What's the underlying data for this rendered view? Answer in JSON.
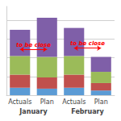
{
  "chart_data": {
    "type": "bar",
    "stacked": true,
    "categories": [
      "Actuals",
      "Plan",
      "Actuals",
      "Plan"
    ],
    "groups": [
      "January",
      "February"
    ],
    "series": [
      {
        "color": "#5b9bd5",
        "values": [
          8,
          7,
          8,
          5
        ]
      },
      {
        "color": "#c0504d",
        "values": [
          14,
          12,
          14,
          8
        ]
      },
      {
        "color": "#9bbb59",
        "values": [
          20,
          22,
          20,
          12
        ]
      },
      {
        "color": "#7f5fa8",
        "values": [
          28,
          42,
          30,
          16
        ]
      }
    ],
    "ylim": [
      0,
      95
    ],
    "yticks": [
      0,
      20,
      40,
      60,
      80
    ],
    "grid": true,
    "tick_labels": "x",
    "annotations": [
      {
        "text": "to be close",
        "color": "#ff0000"
      },
      {
        "text": "to be close",
        "color": "#ff0000"
      }
    ]
  }
}
